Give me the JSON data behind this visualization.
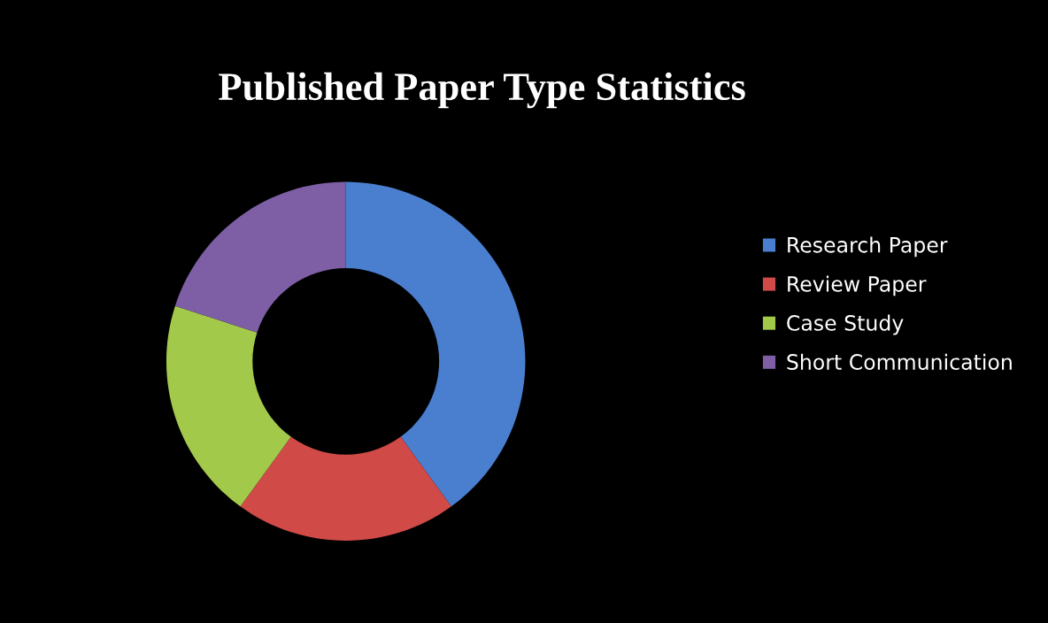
{
  "chart_data": {
    "type": "donut",
    "title": "Published Paper Type Statistics",
    "categories": [
      "Research Paper",
      "Review Paper",
      "Case Study",
      "Short Communication"
    ],
    "values": [
      40,
      20,
      20,
      20
    ],
    "colors": [
      "#4a7fd0",
      "#d04a47",
      "#a3c94b",
      "#7e5fa6"
    ],
    "legend": "right"
  }
}
